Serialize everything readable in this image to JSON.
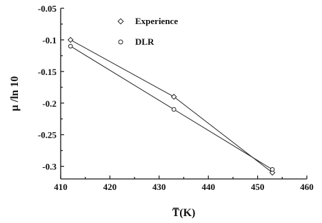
{
  "chart_data": {
    "type": "line",
    "xlabel": "T̅(K)",
    "ylabel": "μ /ln 10",
    "xlim": [
      410,
      460
    ],
    "ylim": [
      -0.32,
      -0.05
    ],
    "xticks": [
      410,
      420,
      430,
      440,
      450,
      460
    ],
    "yticks": [
      -0.05,
      -0.1,
      -0.15,
      -0.2,
      -0.25,
      -0.3
    ],
    "xtick_labels": [
      "410",
      "420",
      "430",
      "440",
      "450",
      "460"
    ],
    "ytick_labels": [
      "-0.05",
      "-0.1",
      "-0.15",
      "-0.2",
      "-0.25",
      "-0.3"
    ],
    "grid": false,
    "legend_position": "top-left",
    "series": [
      {
        "name": "Experience",
        "marker": "diamond",
        "x": [
          412,
          433,
          453
        ],
        "y": [
          -0.1,
          -0.19,
          -0.31
        ]
      },
      {
        "name": "DLR",
        "marker": "circle",
        "x": [
          412,
          433,
          453
        ],
        "y": [
          -0.11,
          -0.21,
          -0.305
        ]
      }
    ]
  }
}
